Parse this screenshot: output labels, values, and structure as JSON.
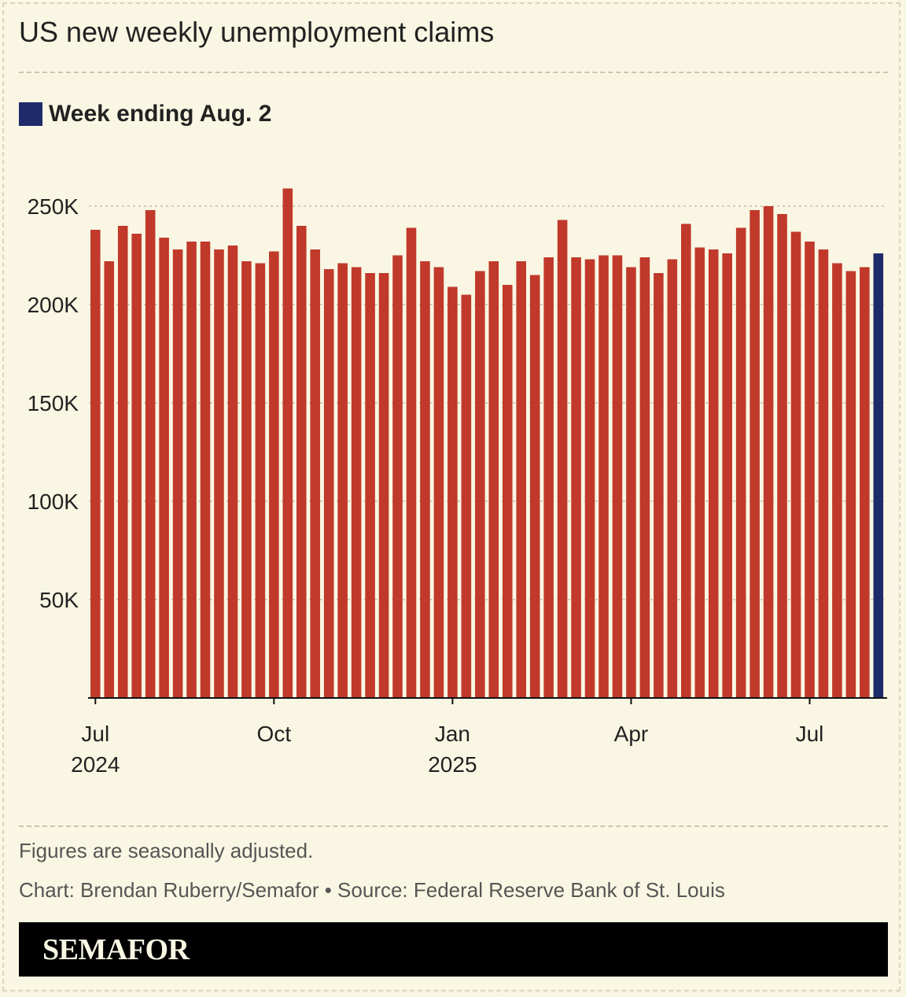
{
  "title": "US new weekly unemployment claims",
  "legend": {
    "label": "Week ending Aug. 2",
    "color": "#1f2a6b"
  },
  "notes": {
    "adjusted": "Figures are seasonally adjusted.",
    "credit": "Chart: Brendan Ruberry/Semafor • Source: Federal Reserve Bank of St. Louis"
  },
  "brand": "SEMAFOR",
  "colors": {
    "bar": "#c0392b",
    "highlight": "#1f2a6b",
    "background": "#f9f7e3"
  },
  "chart_data": {
    "type": "bar",
    "title": "US new weekly unemployment claims",
    "xlabel": "",
    "ylabel": "",
    "ylim": [
      0,
      260000
    ],
    "yticks": [
      {
        "value": 50000,
        "label": "50K"
      },
      {
        "value": 100000,
        "label": "100K"
      },
      {
        "value": 150000,
        "label": "150K"
      },
      {
        "value": 200000,
        "label": "200K"
      },
      {
        "value": 250000,
        "label": "250K"
      }
    ],
    "xticks": [
      {
        "index": 0,
        "line1": "Jul",
        "line2": "2024"
      },
      {
        "index": 13,
        "line1": "Oct",
        "line2": ""
      },
      {
        "index": 26,
        "line1": "Jan",
        "line2": "2025"
      },
      {
        "index": 39,
        "line1": "Apr",
        "line2": ""
      },
      {
        "index": 52,
        "line1": "Jul",
        "line2": ""
      }
    ],
    "grid": true,
    "highlight_index": 57,
    "values": [
      238000,
      222000,
      240000,
      236000,
      248000,
      234000,
      228000,
      232000,
      232000,
      228000,
      230000,
      222000,
      221000,
      227000,
      259000,
      240000,
      228000,
      218000,
      221000,
      219000,
      216000,
      216000,
      225000,
      239000,
      222000,
      219000,
      209000,
      205000,
      217000,
      222000,
      210000,
      222000,
      215000,
      224000,
      243000,
      224000,
      223000,
      225000,
      225000,
      219000,
      224000,
      216000,
      223000,
      241000,
      229000,
      228000,
      226000,
      239000,
      248000,
      250000,
      246000,
      237000,
      232000,
      228000,
      221000,
      217000,
      219000,
      226000
    ]
  }
}
